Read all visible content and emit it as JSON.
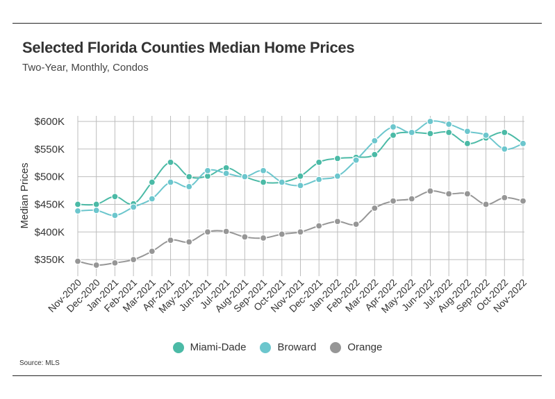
{
  "header": {
    "title": "Selected Florida Counties Median Home Prices",
    "subtitle": "Two-Year, Monthly, Condos"
  },
  "source": "Source:  MLS",
  "chart_data": {
    "type": "line",
    "title": "Selected Florida Counties Median Home Prices",
    "subtitle": "Two-Year, Monthly, Condos",
    "xlabel": "",
    "ylabel": "Median Prices",
    "ylim": [
      320000,
      610000
    ],
    "yticks": [
      350000,
      400000,
      450000,
      500000,
      550000,
      600000
    ],
    "ytick_labels": [
      "$350K",
      "$400K",
      "$450K",
      "$500K",
      "$550K",
      "$600K"
    ],
    "categories": [
      "Nov-2020",
      "Dec-2020",
      "Jan-2021",
      "Feb-2021",
      "Mar-2021",
      "Apr-2021",
      "May-2021",
      "Jun-2021",
      "Jul-2021",
      "Aug-2021",
      "Sep-2021",
      "Oct-2021",
      "Nov-2021",
      "Dec-2021",
      "Jan-2022",
      "Feb-2022",
      "Mar-2022",
      "Apr-2022",
      "May-2022",
      "Jun-2022",
      "Jul-2022",
      "Aug-2022",
      "Sep-2022",
      "Oct-2022",
      "Nov-2022"
    ],
    "grid": true,
    "legend_position": "bottom-center",
    "series": [
      {
        "name": "Miami-Dade",
        "color": "#4bbaa6",
        "values": [
          450000,
          450000,
          464000,
          451000,
          490000,
          526000,
          500000,
          501000,
          516000,
          500000,
          490000,
          490000,
          501000,
          526000,
          533000,
          535000,
          540000,
          575000,
          580000,
          578000,
          580000,
          560000,
          570000,
          580000,
          560000
        ]
      },
      {
        "name": "Broward",
        "color": "#6cc6cd",
        "values": [
          438000,
          439000,
          430000,
          445000,
          460000,
          490000,
          482000,
          511000,
          506000,
          500000,
          511000,
          490000,
          484000,
          495000,
          501000,
          530000,
          565000,
          590000,
          580000,
          600000,
          595000,
          582000,
          575000,
          550000,
          560000
        ]
      },
      {
        "name": "Orange",
        "color": "#969696",
        "values": [
          347000,
          340000,
          344000,
          350000,
          365000,
          385000,
          382000,
          400000,
          401000,
          391000,
          389000,
          396000,
          400000,
          411000,
          419000,
          414000,
          443000,
          456000,
          460000,
          474000,
          469000,
          469000,
          450000,
          462000,
          456000
        ]
      }
    ]
  }
}
